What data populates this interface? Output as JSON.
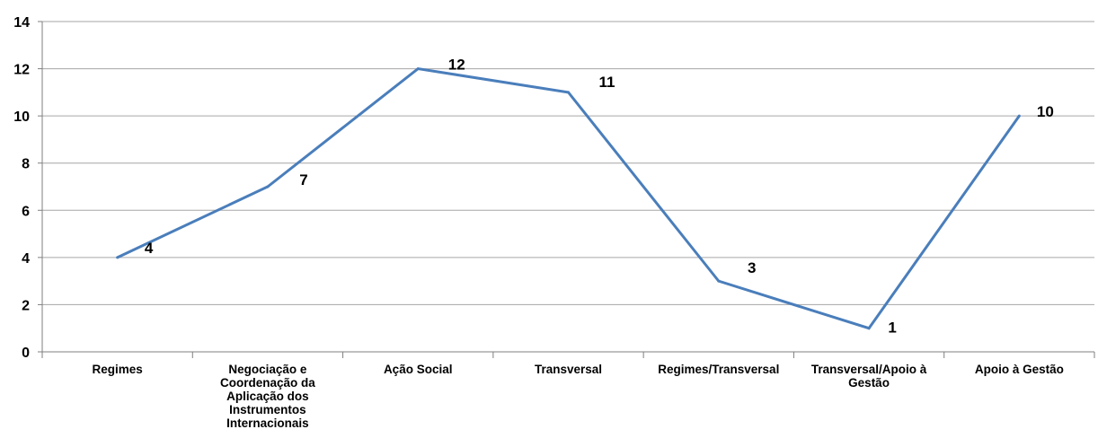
{
  "chart_data": {
    "type": "line",
    "categories": [
      "Regimes",
      "Negociação e Coordenação da Aplicação dos Instrumentos Internacionais",
      "Ação Social",
      "Transversal",
      "Regimes/Transversal",
      "Transversal/Apoio à Gestão",
      "Apoio à Gestão"
    ],
    "series": [
      {
        "values": [
          4,
          7,
          12,
          11,
          3,
          1,
          10
        ]
      }
    ],
    "data_labels": [
      "4",
      "7",
      "12",
      "11",
      "3",
      "1",
      "10"
    ],
    "yticks": [
      "0",
      "2",
      "4",
      "6",
      "8",
      "10",
      "12",
      "14"
    ],
    "ylim": [
      0,
      14
    ],
    "title": "",
    "xlabel": "",
    "ylabel": "",
    "grid": "horizontal",
    "legend": "none",
    "colors": {
      "line": "#4a7ebb",
      "grid": "#a6a6a6",
      "axis": "#7f7f7f"
    }
  }
}
